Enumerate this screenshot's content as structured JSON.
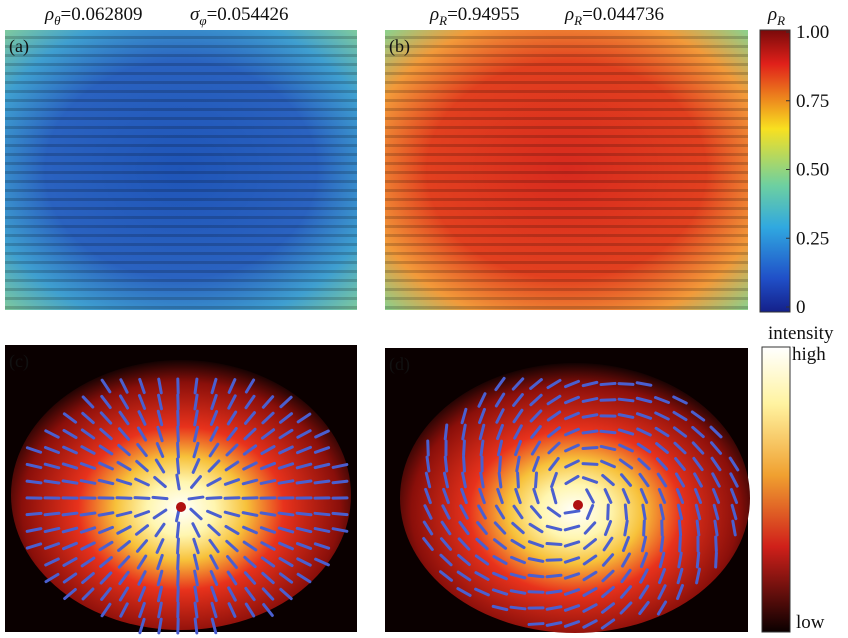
{
  "panels": [
    {
      "label": "(a)",
      "header": [
        {
          "symbol": "ρ",
          "sub": "θ",
          "value": "=0.062809"
        },
        {
          "symbol": "σ",
          "sub": "φ",
          "value": "=0.054426"
        }
      ]
    },
    {
      "label": "(b)",
      "header": [
        {
          "symbol": "ρ",
          "sub": "R",
          "value": "=0.94955"
        },
        {
          "symbol": "ρ",
          "sub": "R",
          "value": "=0.044736"
        }
      ]
    },
    {
      "label": "(c)"
    },
    {
      "label": "(d)"
    }
  ],
  "colorbar_top": {
    "symbol": "ρ",
    "sub": "R",
    "ticks": [
      "1.00",
      "0.75",
      "0.50",
      "0.25",
      "0"
    ]
  },
  "colorbar_bottom": {
    "title": "intensity",
    "high": "high",
    "low": "low"
  }
}
